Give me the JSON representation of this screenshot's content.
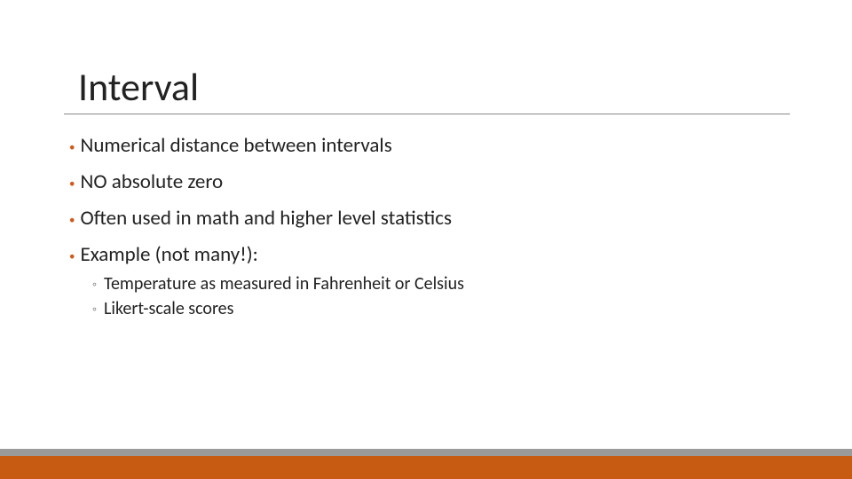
{
  "slide": {
    "title": "Interval",
    "bullets": [
      {
        "text": "Numerical distance between intervals"
      },
      {
        "text": "NO absolute zero"
      },
      {
        "text": "Often used in math and higher level statistics"
      },
      {
        "text": "Example (not many!):"
      }
    ],
    "subbullets": [
      {
        "text": "Temperature as measured in Fahrenheit or Celsius"
      },
      {
        "text": "Likert-scale scores"
      }
    ]
  },
  "style": {
    "bullet_color": "#d05a1a",
    "subbullet_color": "#888888",
    "title_fontsize": 44,
    "bullet_fontsize": 23,
    "sub_fontsize": 20,
    "underline_color": "#888888",
    "footer_gray": "#9a9a9a",
    "footer_orange": "#c75b12",
    "background": "#ffffff",
    "text_color": "#222222"
  }
}
